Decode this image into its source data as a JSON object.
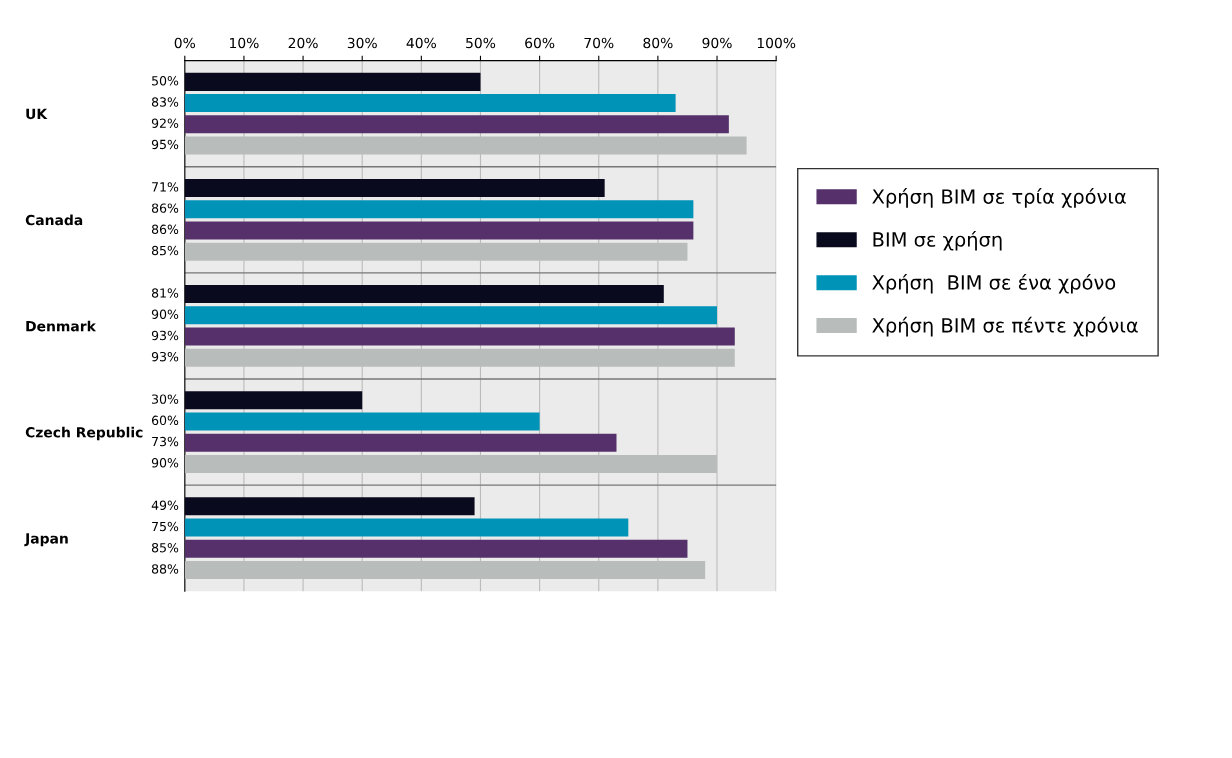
{
  "chart_data": {
    "type": "bar",
    "orientation": "horizontal",
    "categories": [
      "UK",
      "Canada",
      "Denmark",
      "Czech Republic",
      "Japan"
    ],
    "series": [
      {
        "name": "BIM σε χρήση",
        "color": "#0a0a1e",
        "values": [
          50,
          71,
          81,
          30,
          49
        ],
        "value_labels": [
          "50%",
          "71%",
          "81%",
          "30%",
          "49%"
        ]
      },
      {
        "name": "Χρήση  BIM σε ένα χρόνο",
        "color": "#0093b8",
        "values": [
          83,
          86,
          90,
          60,
          75
        ],
        "value_labels": [
          "83%",
          "86%",
          "90%",
          "60%",
          "75%"
        ]
      },
      {
        "name": "Χρήση BIM σε τρία χρόνια",
        "color": "#55306a",
        "values": [
          92,
          86,
          93,
          73,
          85
        ],
        "value_labels": [
          "92%",
          "86%",
          "93%",
          "73%",
          "85%"
        ]
      },
      {
        "name": "Χρήση BIM σε πέντε χρόνια",
        "color": "#b8bcbb",
        "values": [
          95,
          85,
          93,
          90,
          88
        ],
        "value_labels": [
          "95%",
          "85%",
          "93%",
          "90%",
          "88%"
        ]
      }
    ],
    "xlim": [
      0,
      100
    ],
    "xticks": [
      {
        "value": 0,
        "label": "0%"
      },
      {
        "value": 10,
        "label": "10%"
      },
      {
        "value": 20,
        "label": "20%"
      },
      {
        "value": 30,
        "label": "30%"
      },
      {
        "value": 40,
        "label": "40%"
      },
      {
        "value": 50,
        "label": "50%"
      },
      {
        "value": 60,
        "label": "60%"
      },
      {
        "value": 70,
        "label": "70%"
      },
      {
        "value": 80,
        "label": "80%"
      },
      {
        "value": 90,
        "label": "90%"
      },
      {
        "value": 100,
        "label": "100%"
      }
    ],
    "grid": "x",
    "legend": "right"
  }
}
